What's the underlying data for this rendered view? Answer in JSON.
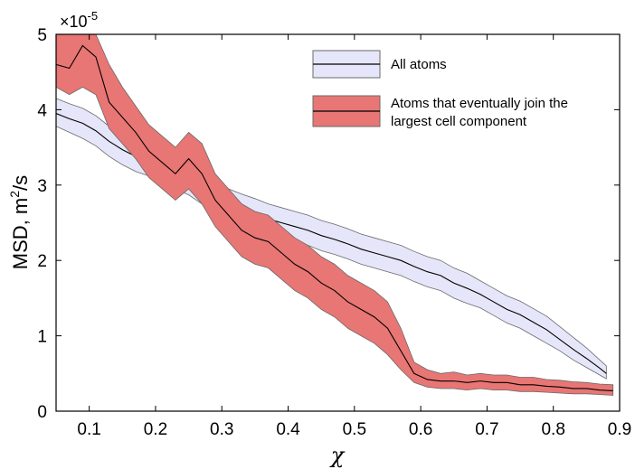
{
  "chart_data": {
    "type": "area",
    "xlabel": "χ",
    "ylabel_main": "MSD, m",
    "ylabel_sup": "2",
    "ylabel_tail": "/s",
    "y_multiplier_base": "×10",
    "y_multiplier_exp": "-5",
    "xlim": [
      0.05,
      0.9
    ],
    "ylim": [
      0,
      5
    ],
    "x_ticks": [
      "0.1",
      "0.2",
      "0.3",
      "0.4",
      "0.5",
      "0.6",
      "0.7",
      "0.8",
      "0.9"
    ],
    "y_ticks": [
      "0",
      "1",
      "2",
      "3",
      "4",
      "5"
    ],
    "grid": false,
    "legend_position": "top-right",
    "series": [
      {
        "name": "All atoms",
        "fill_color": "#e6e6fa",
        "line_color": "#000000",
        "band_edge_color": "#6a6a6a",
        "x": [
          0.05,
          0.07,
          0.09,
          0.11,
          0.13,
          0.15,
          0.17,
          0.19,
          0.21,
          0.23,
          0.25,
          0.27,
          0.29,
          0.31,
          0.33,
          0.35,
          0.37,
          0.39,
          0.41,
          0.43,
          0.45,
          0.47,
          0.49,
          0.51,
          0.53,
          0.55,
          0.57,
          0.59,
          0.61,
          0.63,
          0.65,
          0.67,
          0.69,
          0.71,
          0.73,
          0.75,
          0.77,
          0.79,
          0.81,
          0.83,
          0.85,
          0.87,
          0.88
        ],
        "y": [
          3.95,
          3.88,
          3.82,
          3.72,
          3.58,
          3.47,
          3.38,
          3.32,
          3.25,
          3.15,
          3.07,
          2.95,
          2.85,
          2.75,
          2.68,
          2.62,
          2.55,
          2.5,
          2.45,
          2.4,
          2.33,
          2.28,
          2.22,
          2.15,
          2.1,
          2.05,
          2.0,
          1.92,
          1.85,
          1.8,
          1.7,
          1.63,
          1.55,
          1.45,
          1.35,
          1.28,
          1.18,
          1.08,
          0.95,
          0.82,
          0.7,
          0.57,
          0.5
        ],
        "lower": [
          3.78,
          3.7,
          3.62,
          3.52,
          3.38,
          3.27,
          3.18,
          3.12,
          3.05,
          2.95,
          2.87,
          2.75,
          2.65,
          2.55,
          2.48,
          2.42,
          2.35,
          2.3,
          2.25,
          2.2,
          2.13,
          2.08,
          2.02,
          1.95,
          1.9,
          1.85,
          1.8,
          1.72,
          1.65,
          1.6,
          1.5,
          1.43,
          1.37,
          1.27,
          1.17,
          1.1,
          1.0,
          0.9,
          0.8,
          0.68,
          0.58,
          0.48,
          0.43
        ],
        "upper": [
          4.15,
          4.08,
          4.02,
          3.92,
          3.78,
          3.67,
          3.58,
          3.52,
          3.45,
          3.35,
          3.27,
          3.15,
          3.05,
          2.95,
          2.88,
          2.82,
          2.75,
          2.7,
          2.65,
          2.6,
          2.53,
          2.48,
          2.42,
          2.35,
          2.3,
          2.25,
          2.2,
          2.12,
          2.05,
          2.0,
          1.9,
          1.83,
          1.73,
          1.63,
          1.53,
          1.46,
          1.36,
          1.26,
          1.12,
          0.98,
          0.84,
          0.68,
          0.6
        ]
      },
      {
        "name": "Atoms that eventually join the largest cell component",
        "fill_color": "#e87674",
        "line_color": "#000000",
        "band_edge_color": "#6a6a6a",
        "x": [
          0.05,
          0.07,
          0.09,
          0.11,
          0.13,
          0.15,
          0.17,
          0.19,
          0.21,
          0.23,
          0.25,
          0.27,
          0.29,
          0.31,
          0.33,
          0.35,
          0.37,
          0.39,
          0.41,
          0.43,
          0.45,
          0.47,
          0.49,
          0.51,
          0.53,
          0.55,
          0.57,
          0.59,
          0.61,
          0.63,
          0.65,
          0.67,
          0.69,
          0.71,
          0.73,
          0.75,
          0.77,
          0.79,
          0.81,
          0.83,
          0.85,
          0.87,
          0.89
        ],
        "y": [
          4.6,
          4.55,
          4.85,
          4.7,
          4.1,
          3.9,
          3.7,
          3.45,
          3.3,
          3.15,
          3.35,
          3.15,
          2.8,
          2.6,
          2.4,
          2.3,
          2.25,
          2.1,
          1.95,
          1.85,
          1.7,
          1.6,
          1.45,
          1.35,
          1.25,
          1.1,
          0.8,
          0.5,
          0.42,
          0.4,
          0.4,
          0.38,
          0.4,
          0.38,
          0.38,
          0.35,
          0.35,
          0.33,
          0.32,
          0.3,
          0.3,
          0.28,
          0.27
        ],
        "lower": [
          4.3,
          4.2,
          4.3,
          4.2,
          3.75,
          3.55,
          3.35,
          3.1,
          2.95,
          2.8,
          2.95,
          2.75,
          2.45,
          2.25,
          2.05,
          1.95,
          1.9,
          1.75,
          1.6,
          1.5,
          1.35,
          1.25,
          1.1,
          1.0,
          0.9,
          0.75,
          0.55,
          0.38,
          0.32,
          0.3,
          0.3,
          0.28,
          0.3,
          0.28,
          0.28,
          0.26,
          0.26,
          0.25,
          0.24,
          0.23,
          0.23,
          0.22,
          0.21
        ],
        "upper": [
          5.0,
          5.0,
          5.0,
          5.0,
          4.6,
          4.3,
          4.05,
          3.8,
          3.65,
          3.5,
          3.7,
          3.55,
          3.15,
          2.95,
          2.75,
          2.65,
          2.6,
          2.45,
          2.3,
          2.2,
          2.05,
          1.95,
          1.8,
          1.7,
          1.6,
          1.45,
          1.1,
          0.65,
          0.55,
          0.5,
          0.52,
          0.48,
          0.5,
          0.48,
          0.48,
          0.45,
          0.45,
          0.42,
          0.41,
          0.39,
          0.38,
          0.36,
          0.35
        ]
      }
    ]
  },
  "legend": {
    "entries": [
      {
        "line1": "All atoms",
        "line2": ""
      },
      {
        "line1": "Atoms that eventually join the",
        "line2": "largest cell component"
      }
    ]
  }
}
